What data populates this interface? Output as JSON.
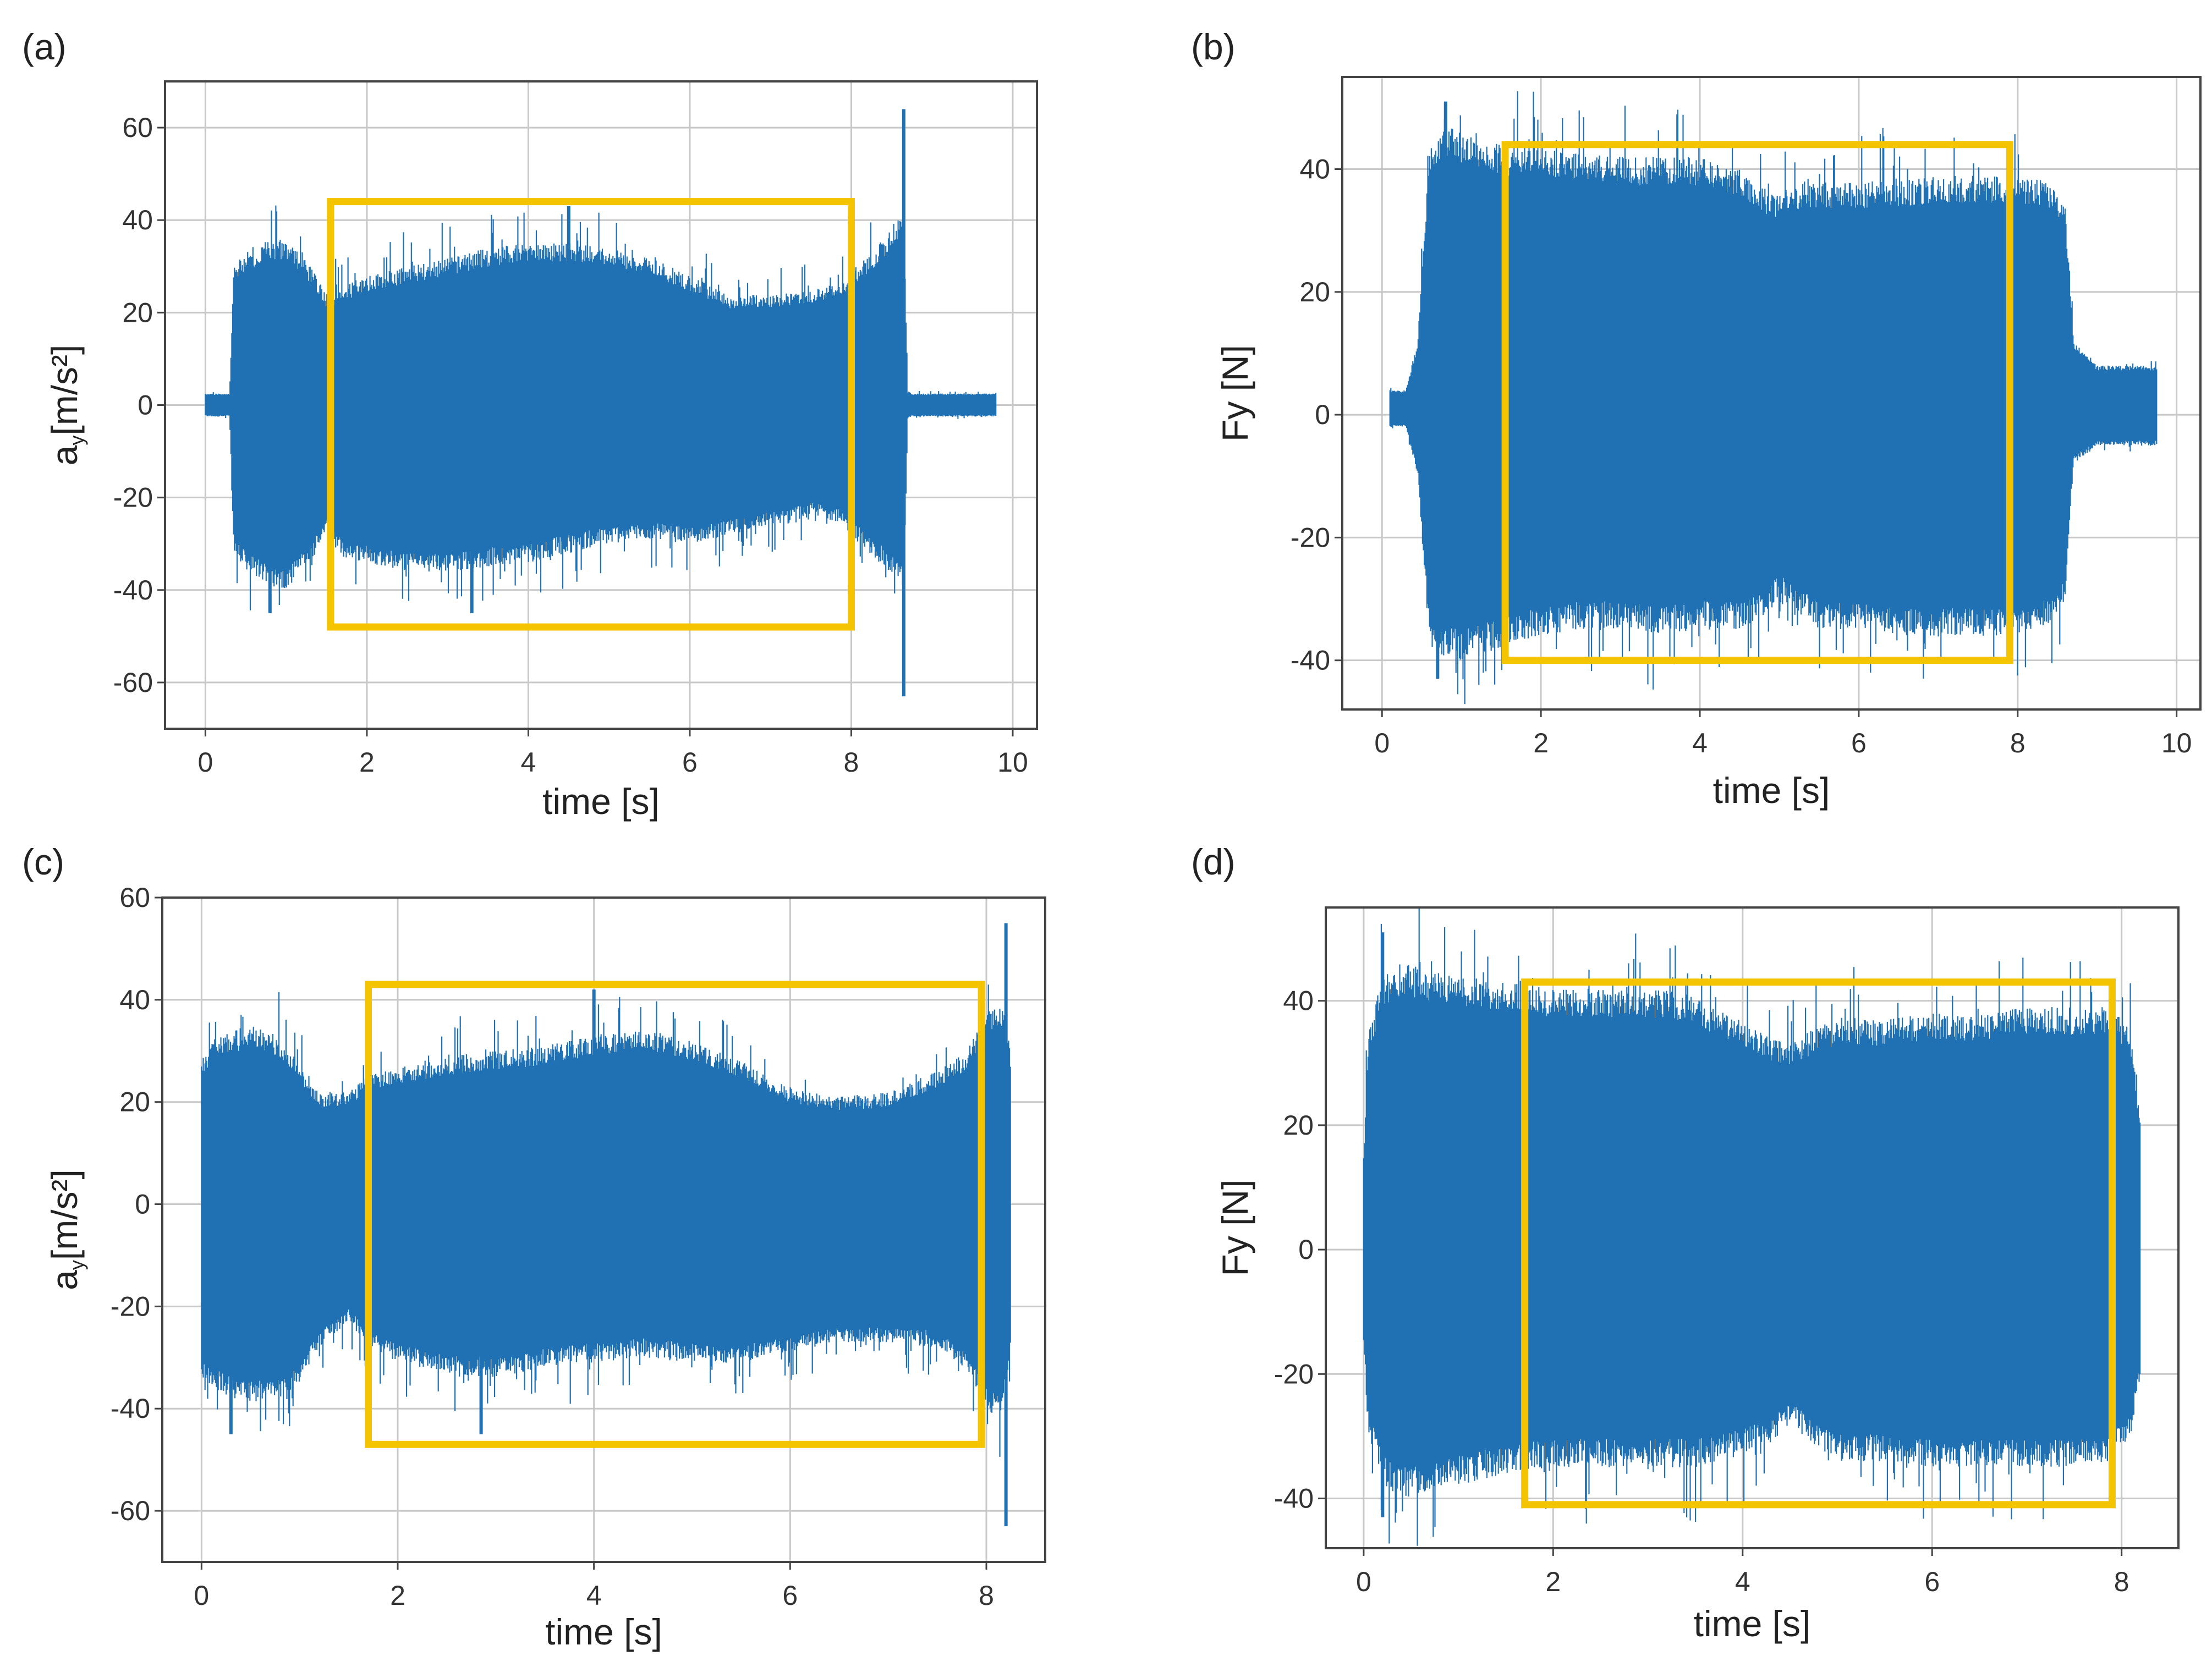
{
  "colors": {
    "signal": "#2070b4",
    "highlight": "#f5c400"
  },
  "chart_data": [
    {
      "panel_label": "(a)",
      "type": "line",
      "title": "",
      "xlabel": "time [s]",
      "ylabel": "a",
      "ylabel_sub": "y",
      "ylabel_suffix": "[m/s²]",
      "xlim": [
        -0.5,
        10.3
      ],
      "ylim": [
        -70,
        70
      ],
      "xticks": [
        0,
        2,
        4,
        6,
        8,
        10
      ],
      "yticks": [
        -60,
        -40,
        -20,
        0,
        20,
        40,
        60
      ],
      "xtick_labels": [
        "0",
        "2",
        "4",
        "6",
        "8",
        "10"
      ],
      "ytick_labels": [
        "-60",
        "-40",
        "-20",
        "0",
        "20",
        "40",
        "60"
      ],
      "grid": true,
      "series": [
        {
          "name": "a_y",
          "envelope_x": [
            0.0,
            0.3,
            0.35,
            0.5,
            0.8,
            1.0,
            1.3,
            1.5,
            1.7,
            2.0,
            2.5,
            3.0,
            3.5,
            4.0,
            4.5,
            5.0,
            5.5,
            6.0,
            6.5,
            7.0,
            7.5,
            7.8,
            8.0,
            8.2,
            8.4,
            8.55,
            8.65,
            8.7,
            8.75,
            9.0,
            9.5,
            9.8
          ],
          "envelope_upper": [
            2.5,
            2.5,
            30,
            33,
            36,
            36,
            30,
            24,
            26,
            28,
            30,
            32,
            34,
            35,
            35,
            34,
            32,
            28,
            24,
            24,
            25,
            26,
            29,
            32,
            36,
            40,
            42,
            3,
            2.5,
            2.5,
            2.5,
            2.5
          ],
          "envelope_lower": [
            -2.5,
            -2.5,
            -32,
            -36,
            -39,
            -40,
            -34,
            -28,
            -33,
            -34,
            -36,
            -36,
            -35,
            -34,
            -32,
            -30,
            -29,
            -30,
            -28,
            -26,
            -24,
            -25,
            -28,
            -32,
            -35,
            -38,
            -40,
            -3,
            -2.5,
            -2.5,
            -2.5,
            -2.5
          ],
          "peaks": [
            [
              8.65,
              64
            ],
            [
              8.65,
              -63
            ],
            [
              4.5,
              43
            ],
            [
              3.3,
              -45
            ],
            [
              0.8,
              -45
            ]
          ]
        }
      ],
      "highlight_box": {
        "x": [
          1.55,
          8.0
        ],
        "y": [
          -48,
          44
        ]
      }
    },
    {
      "panel_label": "(b)",
      "type": "line",
      "title": "",
      "xlabel": "time [s]",
      "ylabel": "Fy [N]",
      "xlim": [
        -0.5,
        10.3
      ],
      "ylim": [
        -48,
        55
      ],
      "xticks": [
        0,
        2,
        4,
        6,
        8,
        10
      ],
      "yticks": [
        -40,
        -20,
        0,
        20,
        40
      ],
      "xtick_labels": [
        "0",
        "2",
        "4",
        "6",
        "8",
        "10"
      ],
      "ytick_labels": [
        "-40",
        "-20",
        "0",
        "20",
        "40"
      ],
      "grid": true,
      "series": [
        {
          "name": "F_y",
          "envelope_x": [
            0.1,
            0.3,
            0.45,
            0.6,
            0.8,
            1.0,
            1.5,
            2.0,
            2.5,
            3.0,
            3.5,
            4.0,
            4.5,
            4.8,
            5.0,
            5.3,
            5.5,
            6.0,
            6.5,
            7.0,
            7.5,
            8.0,
            8.4,
            8.6,
            8.7,
            9.0,
            9.5,
            9.75
          ],
          "envelope_upper": [
            4,
            4,
            12,
            44,
            47,
            46,
            44,
            43,
            43,
            42,
            42,
            42,
            40,
            37,
            36,
            38,
            38,
            38,
            38,
            39,
            39,
            39,
            38,
            34,
            12,
            8,
            8,
            8
          ],
          "envelope_lower": [
            -2,
            -2,
            -10,
            -38,
            -40,
            -40,
            -38,
            -36,
            -35,
            -35,
            -36,
            -35,
            -35,
            -33,
            -30,
            -33,
            -35,
            -35,
            -36,
            -36,
            -36,
            -36,
            -34,
            -30,
            -8,
            -5,
            -5,
            -5
          ],
          "peaks": [
            [
              0.8,
              51
            ],
            [
              0.7,
              -43
            ]
          ]
        }
      ],
      "highlight_box": {
        "x": [
          1.55,
          7.9
        ],
        "y": [
          -40,
          44
        ]
      }
    },
    {
      "panel_label": "(c)",
      "type": "line",
      "title": "",
      "xlabel": "time [s]",
      "ylabel": "a",
      "ylabel_sub": "y",
      "ylabel_suffix": "[m/s²]",
      "xlim": [
        -0.4,
        8.6
      ],
      "ylim": [
        -70,
        60
      ],
      "xticks": [
        0,
        2,
        4,
        6,
        8
      ],
      "yticks": [
        -60,
        -40,
        -20,
        0,
        20,
        40,
        60
      ],
      "xtick_labels": [
        "0",
        "2",
        "4",
        "6",
        "8"
      ],
      "ytick_labels": [
        "-60",
        "-40",
        "-20",
        "0",
        "20",
        "40",
        "60"
      ],
      "grid": true,
      "series": [
        {
          "name": "a_y",
          "envelope_x": [
            0.0,
            0.1,
            0.3,
            0.5,
            0.8,
            1.0,
            1.2,
            1.5,
            1.7,
            2.0,
            2.5,
            3.0,
            3.5,
            4.0,
            4.5,
            5.0,
            5.5,
            6.0,
            6.5,
            7.0,
            7.5,
            7.8,
            8.0,
            8.15,
            8.25
          ],
          "envelope_upper": [
            28,
            32,
            34,
            35,
            33,
            28,
            22,
            22,
            25,
            27,
            29,
            30,
            31,
            33,
            34,
            32,
            28,
            23,
            21,
            22,
            26,
            30,
            38,
            40,
            30
          ],
          "envelope_lower": [
            -34,
            -36,
            -38,
            -39,
            -38,
            -35,
            -28,
            -23,
            -28,
            -31,
            -33,
            -34,
            -32,
            -31,
            -30,
            -31,
            -31,
            -29,
            -27,
            -27,
            -28,
            -33,
            -40,
            -42,
            -30
          ],
          "peaks": [
            [
              8.2,
              55
            ],
            [
              8.2,
              -63
            ],
            [
              4.0,
              42
            ],
            [
              2.85,
              -45
            ],
            [
              0.3,
              -45
            ]
          ]
        }
      ],
      "highlight_box": {
        "x": [
          1.7,
          7.95
        ],
        "y": [
          -47,
          43
        ]
      }
    },
    {
      "panel_label": "(d)",
      "type": "line",
      "title": "",
      "xlabel": "time [s]",
      "ylabel": "Fy [N]",
      "xlim": [
        -0.4,
        8.6
      ],
      "ylim": [
        -48,
        55
      ],
      "xticks": [
        0,
        2,
        4,
        6,
        8
      ],
      "yticks": [
        -40,
        -20,
        0,
        20,
        40
      ],
      "xtick_labels": [
        "0",
        "2",
        "4",
        "6",
        "8"
      ],
      "ytick_labels": [
        "-40",
        "-20",
        "0",
        "20",
        "40"
      ],
      "grid": true,
      "series": [
        {
          "name": "F_y",
          "envelope_x": [
            0.0,
            0.05,
            0.2,
            0.4,
            0.7,
            1.0,
            1.5,
            2.0,
            2.5,
            3.0,
            3.5,
            3.8,
            4.0,
            4.3,
            4.5,
            4.8,
            5.0,
            5.5,
            6.0,
            6.5,
            7.0,
            7.5,
            7.9,
            8.1,
            8.2
          ],
          "envelope_upper": [
            15,
            35,
            44,
            46,
            45,
            44,
            43,
            42,
            42,
            42,
            41,
            38,
            37,
            34,
            33,
            36,
            37,
            37,
            38,
            38,
            39,
            39,
            39,
            35,
            20
          ],
          "envelope_lower": [
            -15,
            -30,
            -38,
            -40,
            -39,
            -38,
            -36,
            -35,
            -35,
            -35,
            -35,
            -34,
            -33,
            -31,
            -28,
            -32,
            -34,
            -34,
            -35,
            -35,
            -35,
            -35,
            -34,
            -30,
            -20
          ],
          "peaks": [
            [
              0.2,
              51
            ],
            [
              0.2,
              -43
            ]
          ]
        }
      ],
      "highlight_box": {
        "x": [
          1.7,
          7.9
        ],
        "y": [
          -41,
          43
        ]
      }
    }
  ]
}
